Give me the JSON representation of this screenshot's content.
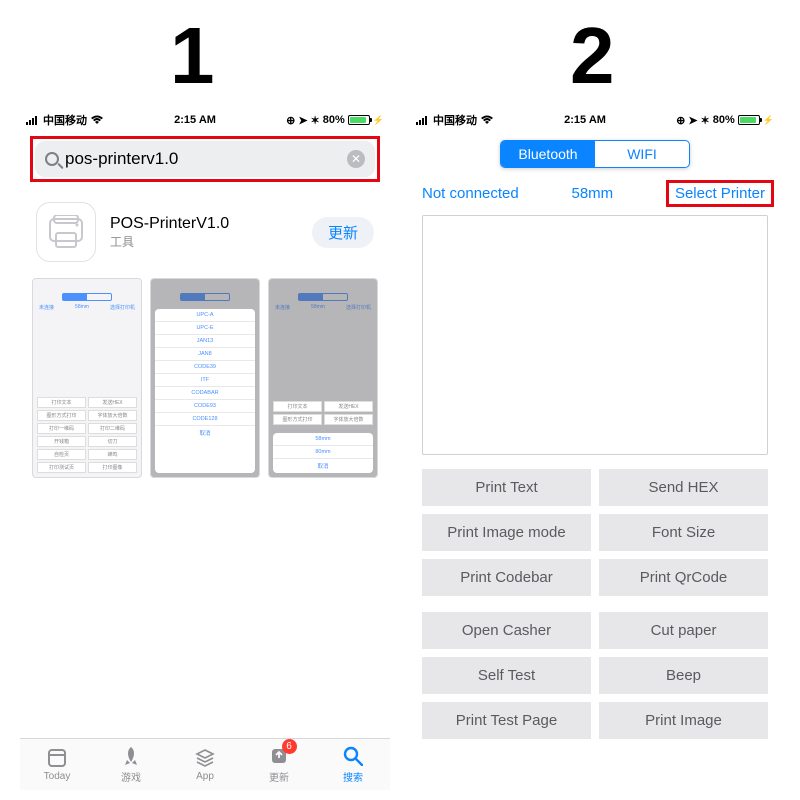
{
  "step_labels": {
    "one": "1",
    "two": "2"
  },
  "status": {
    "carrier": "中国移动",
    "time": "2:15 AM",
    "battery_pct": "80%",
    "battery_fill_pct": 80
  },
  "panel1": {
    "search_value": "pos-printerv1.0",
    "app_title": "POS-PrinterV1.0",
    "app_subtitle": "工具",
    "update_btn": "更新",
    "tabbar": [
      {
        "key": "today",
        "label": "Today"
      },
      {
        "key": "games",
        "label": "游戏"
      },
      {
        "key": "apps",
        "label": "App"
      },
      {
        "key": "updates",
        "label": "更新",
        "badge": "6"
      },
      {
        "key": "search",
        "label": "搜索",
        "active": true
      }
    ],
    "shot1": {
      "top": [
        "未连接",
        "58mm",
        "选择打印机"
      ],
      "grid": [
        "打印文本",
        "发送HEX",
        "图形方式打印",
        "字体放大倍数",
        "打印一维码",
        "打印二维码",
        "开钱箱",
        "切刀",
        "自检页",
        "蜂鸣",
        "打印测试页",
        "打印图像"
      ]
    },
    "shot2": {
      "sheet": [
        "UPC-A",
        "UPC-E",
        "JAN13",
        "JAN8",
        "CODE39",
        "ITF",
        "CODABAR",
        "CODE93",
        "CODE128",
        "取消"
      ]
    },
    "shot3": {
      "grid": [
        "打印文本",
        "发送HEX",
        "图形方式打印",
        "字体放大倍数"
      ],
      "sheet": [
        "58mm",
        "80mm",
        "取消"
      ]
    }
  },
  "panel2": {
    "seg": {
      "bluetooth": "Bluetooth",
      "wifi": "WIFI"
    },
    "status_row": {
      "left": "Not connected",
      "mid": "58mm",
      "right": "Select Printer"
    },
    "group1": [
      "Print Text",
      "Send HEX",
      "Print Image mode",
      "Font Size",
      "Print Codebar",
      "Print QrCode"
    ],
    "group2": [
      "Open Casher",
      "Cut paper",
      "Self Test",
      "Beep",
      "Print Test Page",
      "Print Image"
    ]
  },
  "colors": {
    "highlight_border": "#e30613",
    "ios_blue": "#0a84ff",
    "button_bg": "#e7e7e9",
    "button_fg": "#5a5a5f",
    "battery_green": "#4cd964"
  }
}
